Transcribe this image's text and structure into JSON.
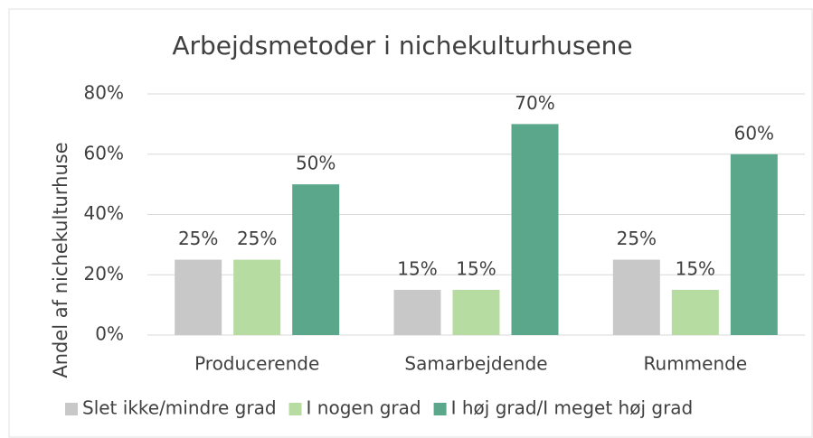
{
  "chart_data": {
    "type": "bar",
    "title": "Arbejdsmetoder i nichekulturhusene",
    "y_label": "Andel af nichekulturhuse",
    "categories": [
      "Producerende",
      "Samarbejdende",
      "Rummende"
    ],
    "series": [
      {
        "name": "Slet ikke/mindre grad",
        "color": "#c8c8c8",
        "values": [
          25,
          15,
          25
        ],
        "value_labels": [
          "25%",
          "15%",
          "25%"
        ]
      },
      {
        "name": "I nogen grad",
        "color": "#b6dca2",
        "values": [
          25,
          15,
          15
        ],
        "value_labels": [
          "25%",
          "15%",
          "15%"
        ]
      },
      {
        "name": "I høj grad/I meget høj grad",
        "color": "#5aa78c",
        "values": [
          50,
          70,
          60
        ],
        "value_labels": [
          "50%",
          "70%",
          "60%"
        ]
      }
    ],
    "ylim": [
      0,
      80
    ],
    "yticks": [
      {
        "value": 0,
        "label": "0%"
      },
      {
        "value": 20,
        "label": "20%"
      },
      {
        "value": 40,
        "label": "40%"
      },
      {
        "value": 60,
        "label": "60%"
      },
      {
        "value": 80,
        "label": "80%"
      }
    ],
    "grid": true,
    "legend": "bottom"
  }
}
